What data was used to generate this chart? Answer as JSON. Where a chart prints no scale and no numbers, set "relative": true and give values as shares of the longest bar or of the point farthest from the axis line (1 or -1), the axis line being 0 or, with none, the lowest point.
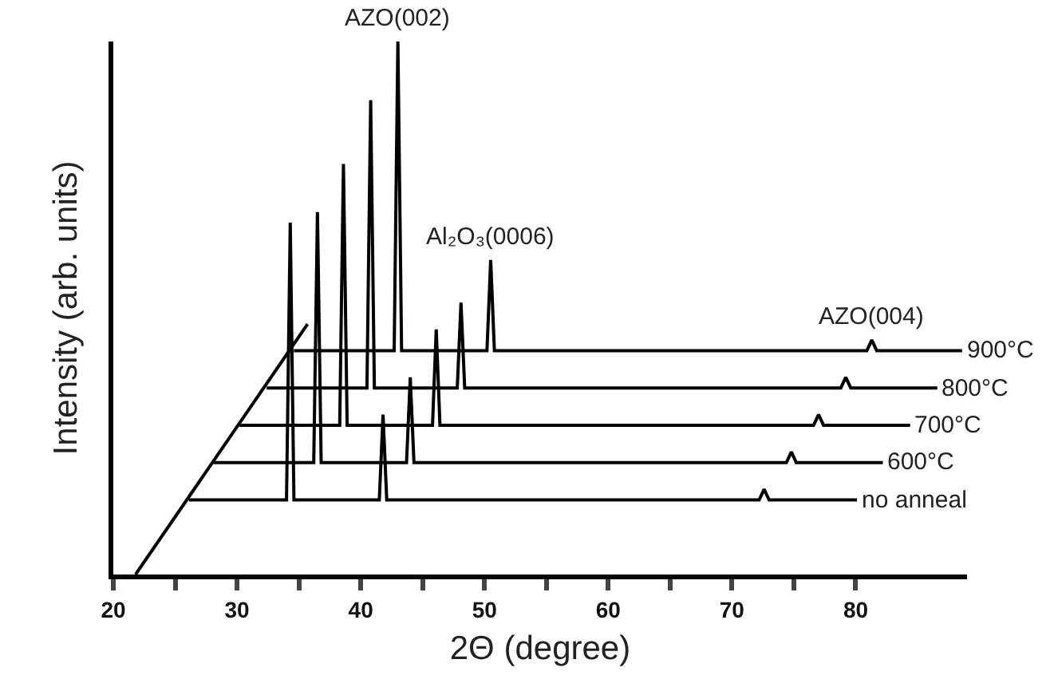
{
  "chart_data": {
    "type": "line",
    "relative": true,
    "xlabel": "2Θ (degree)",
    "ylabel": "Intensity (arb. units)",
    "xlim": [
      20,
      89
    ],
    "xticks": [
      20,
      {
        "value": 25,
        "label": null
      },
      30,
      {
        "value": 35,
        "label": null
      },
      40,
      {
        "value": 45,
        "label": null
      },
      50,
      {
        "value": 55,
        "label": null
      },
      60,
      {
        "value": 65,
        "label": null
      },
      70,
      {
        "value": 75,
        "label": null
      },
      80
    ],
    "grid": false,
    "legend": false,
    "tick_labels": "x",
    "series": [
      {
        "name": "no anneal",
        "color": "#000000",
        "x": [
          26.1,
          34.0,
          34.3,
          34.6,
          41.5,
          41.8,
          42.1,
          72.2,
          72.6,
          73.0,
          80.1
        ],
        "values": [
          0.14,
          0.14,
          0.66,
          0.14,
          0.14,
          0.3,
          0.14,
          0.14,
          0.16,
          0.14,
          0.14
        ]
      },
      {
        "name": "600°C",
        "color": "#000000",
        "x": [
          28.1,
          36.2,
          36.5,
          36.8,
          43.7,
          44.0,
          44.3,
          74.4,
          74.8,
          75.2,
          82.2
        ],
        "values": [
          0.21,
          0.21,
          0.68,
          0.21,
          0.21,
          0.37,
          0.21,
          0.21,
          0.23,
          0.21,
          0.21
        ]
      },
      {
        "name": "700°C",
        "color": "#000000",
        "x": [
          30.2,
          38.3,
          38.6,
          38.9,
          45.8,
          46.1,
          46.4,
          76.6,
          77.0,
          77.4,
          84.4
        ],
        "values": [
          0.28,
          0.28,
          0.77,
          0.28,
          0.28,
          0.46,
          0.28,
          0.28,
          0.3,
          0.28,
          0.28
        ]
      },
      {
        "name": "800°C",
        "color": "#000000",
        "x": [
          32.4,
          40.5,
          40.8,
          41.1,
          47.8,
          48.1,
          48.4,
          78.8,
          79.2,
          79.6,
          86.6
        ],
        "values": [
          0.35,
          0.35,
          0.89,
          0.35,
          0.35,
          0.51,
          0.35,
          0.35,
          0.37,
          0.35,
          0.35
        ]
      },
      {
        "name": "900°C",
        "color": "#000000",
        "x": [
          34.6,
          42.7,
          43.0,
          43.3,
          50.2,
          50.5,
          50.8,
          80.9,
          81.3,
          81.7,
          88.6
        ],
        "values": [
          0.42,
          0.42,
          1.0,
          0.42,
          0.42,
          0.59,
          0.42,
          0.42,
          0.44,
          0.42,
          0.42
        ]
      },
      {
        "color": "#000000",
        "x": [
          21.8,
          35.7
        ],
        "values": [
          0,
          0.47
        ]
      }
    ],
    "annotations": [
      {
        "text": "AZO(002)",
        "x": 43.0,
        "y": 1.0
      },
      {
        "text": "Al₂O₃(0006)",
        "x": 50.5,
        "y": 0.59
      },
      {
        "text": "AZO(004)",
        "x": 81.3,
        "y": 0.44
      }
    ]
  }
}
